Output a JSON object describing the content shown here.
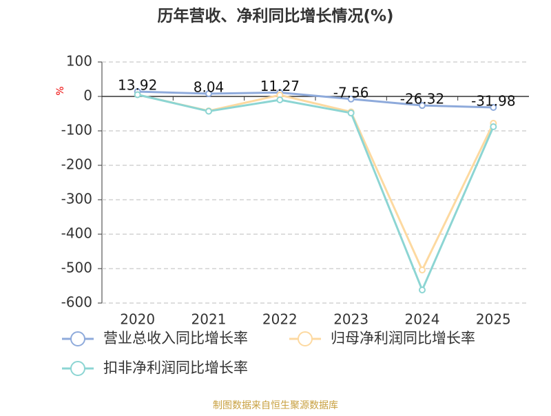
{
  "chart_data": {
    "type": "line",
    "title": "历年营收、净利同比增长情况(%)",
    "y_label": "%",
    "categories": [
      "2020",
      "2021",
      "2022",
      "2023",
      "2024",
      "2025"
    ],
    "series": [
      {
        "name": "营业总收入同比增长率",
        "color": "#8eaadb",
        "values": [
          13.92,
          8.04,
          11.27,
          -7.56,
          -26.32,
          -31.98
        ],
        "show_labels": true
      },
      {
        "name": "归母净利润同比增长率",
        "color": "#fdd9a0",
        "values": [
          5,
          -42,
          4,
          -45,
          -504,
          -78
        ]
      },
      {
        "name": "扣非净利润同比增长率",
        "color": "#8cd5d3",
        "values": [
          5,
          -43,
          -10,
          -48,
          -562,
          -88
        ]
      }
    ],
    "ylim": [
      -600,
      100
    ],
    "yticks": [
      -600,
      -500,
      -400,
      -300,
      -200,
      -100,
      0,
      100
    ],
    "grid": true,
    "legend": "bottom",
    "source": "制图数据来自恒生聚源数据库"
  }
}
